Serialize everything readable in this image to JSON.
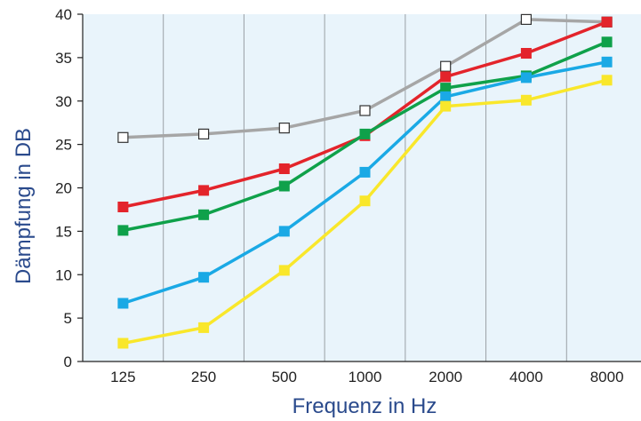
{
  "chart_data": {
    "type": "line",
    "xlabel": "Frequenz in Hz",
    "ylabel": "Dämpfung in DB",
    "categories": [
      "125",
      "250",
      "500",
      "1000",
      "2000",
      "4000",
      "8000"
    ],
    "ylim": [
      0,
      40
    ],
    "yticks": [
      0,
      5,
      10,
      15,
      20,
      25,
      30,
      35,
      40
    ],
    "grid": "vertical",
    "legend": "none",
    "plot_background": "#e9f4fb",
    "grid_color": "#9aa0a6",
    "series": [
      {
        "color": "#a6a6a6",
        "marker": "open-square",
        "values": [
          25.8,
          26.2,
          26.9,
          28.9,
          34.0,
          39.4,
          39.1
        ]
      },
      {
        "color": "#e3242b",
        "marker": "filled-square",
        "values": [
          17.8,
          19.7,
          22.2,
          26.0,
          32.8,
          35.5,
          39.1
        ]
      },
      {
        "color": "#0fa14a",
        "marker": "filled-square",
        "values": [
          15.1,
          16.9,
          20.2,
          26.2,
          31.5,
          32.9,
          36.8
        ]
      },
      {
        "color": "#1aa9e5",
        "marker": "filled-square",
        "values": [
          6.7,
          9.7,
          15.0,
          21.8,
          30.5,
          32.7,
          34.5
        ]
      },
      {
        "color": "#f9e72b",
        "marker": "filled-square",
        "values": [
          2.1,
          3.9,
          10.5,
          18.5,
          29.4,
          30.1,
          32.4
        ]
      }
    ]
  }
}
